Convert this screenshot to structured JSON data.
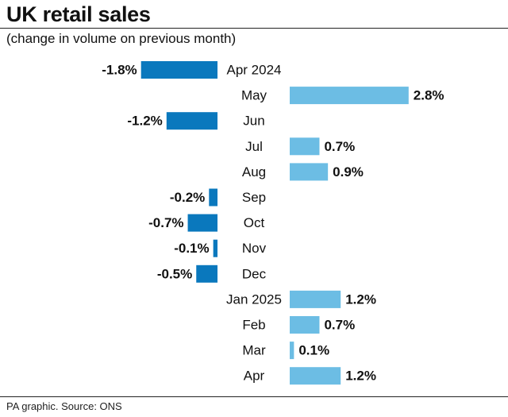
{
  "header": {
    "title": "UK retail sales",
    "subtitle": "(change in volume on previous month)"
  },
  "footer": {
    "source": "PA graphic. Source: ONS"
  },
  "colors": {
    "negative": "#0a78bd",
    "positive": "#6cbde4",
    "text": "#111111"
  },
  "chart_data": {
    "type": "bar",
    "orientation": "horizontal-diverging",
    "title": "UK retail sales",
    "subtitle": "(change in volume on previous month)",
    "categories": [
      "Apr 2024",
      "May",
      "Jun",
      "Jul",
      "Aug",
      "Sep",
      "Oct",
      "Nov",
      "Dec",
      "Jan 2025",
      "Feb",
      "Mar",
      "Apr"
    ],
    "values": [
      -1.8,
      2.8,
      -1.2,
      0.7,
      0.9,
      -0.2,
      -0.7,
      -0.1,
      -0.5,
      1.2,
      0.7,
      0.1,
      1.2
    ],
    "value_labels": [
      "-1.8%",
      "2.8%",
      "-1.2%",
      "0.7%",
      "0.9%",
      "-0.2%",
      "-0.7%",
      "-0.1%",
      "-0.5%",
      "1.2%",
      "0.7%",
      "0.1%",
      "1.2%"
    ],
    "unit": "%",
    "xlabel": "",
    "ylabel": "",
    "grid": false,
    "legend": "none"
  }
}
